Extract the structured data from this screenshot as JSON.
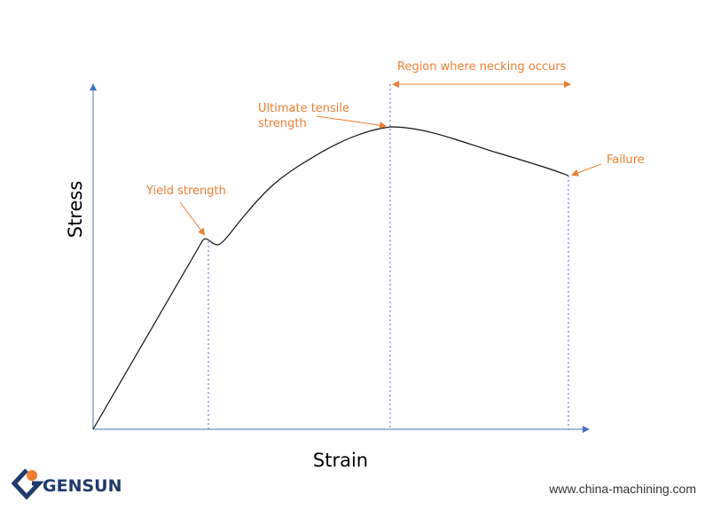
{
  "axes": {
    "x_label": "Strain",
    "y_label": "Stress"
  },
  "annotations": {
    "yield": "Yield strength",
    "ultimate": [
      "Ultimate tensile",
      "strength"
    ],
    "necking": "Region where necking occurs",
    "failure": "Failure"
  },
  "footer": {
    "brand": "GENSUN",
    "url": "www.china-machining.com"
  }
}
